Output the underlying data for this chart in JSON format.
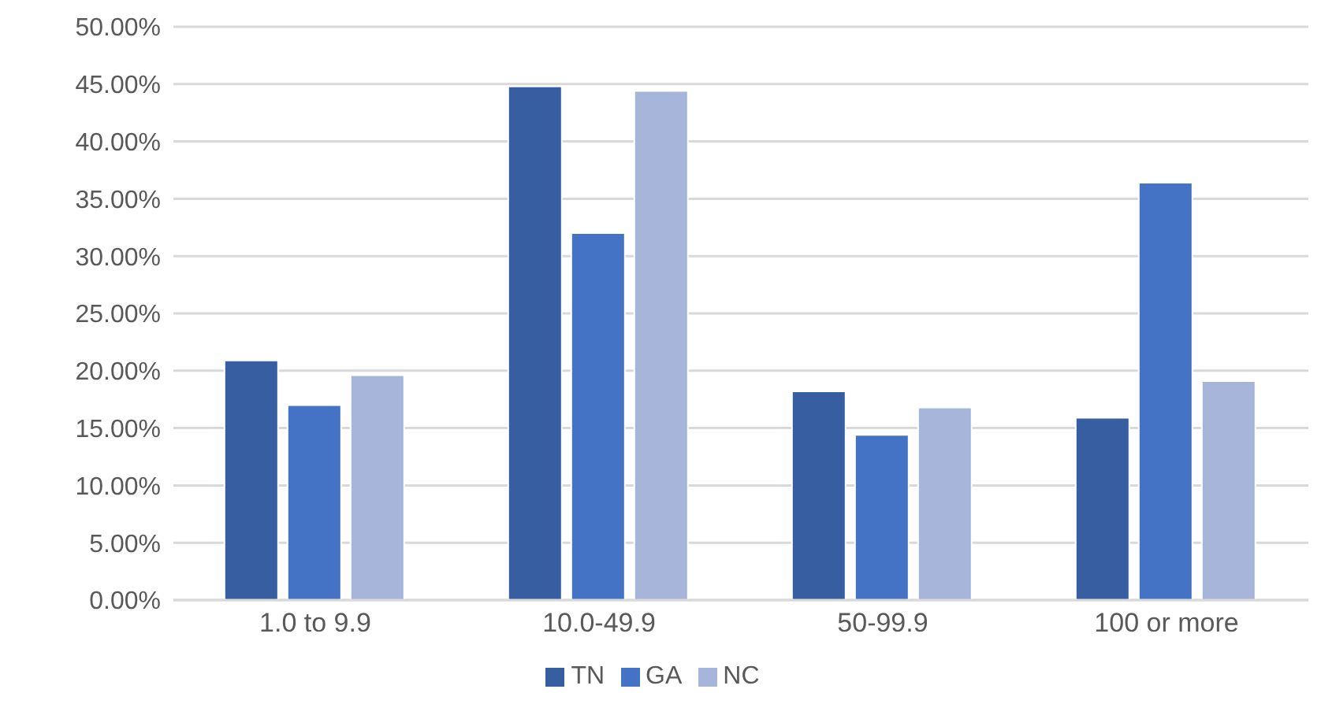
{
  "chart_data": {
    "type": "bar",
    "categories": [
      "1.0 to 9.9",
      "10.0-49.9",
      "50-99.9",
      "100 or more"
    ],
    "series": [
      {
        "name": "TN",
        "color": "#365ea1",
        "values": [
          20.9,
          44.8,
          18.2,
          15.9
        ]
      },
      {
        "name": "GA",
        "color": "#4472c4",
        "values": [
          17.0,
          32.0,
          14.4,
          36.4
        ]
      },
      {
        "name": "NC",
        "color": "#a7b5da",
        "values": [
          19.6,
          44.4,
          16.8,
          19.1
        ]
      }
    ],
    "ylim": [
      0,
      50
    ],
    "yticks": [
      {
        "value": 0,
        "label": "0.00%"
      },
      {
        "value": 5,
        "label": "5.00%"
      },
      {
        "value": 10,
        "label": "10.00%"
      },
      {
        "value": 15,
        "label": "15.00%"
      },
      {
        "value": 20,
        "label": "20.00%"
      },
      {
        "value": 25,
        "label": "25.00%"
      },
      {
        "value": 30,
        "label": "30.00%"
      },
      {
        "value": 35,
        "label": "35.00%"
      },
      {
        "value": 40,
        "label": "40.00%"
      },
      {
        "value": 45,
        "label": "45.00%"
      },
      {
        "value": 50,
        "label": "50.00%"
      }
    ],
    "grid": "y",
    "legend": "bottom"
  }
}
